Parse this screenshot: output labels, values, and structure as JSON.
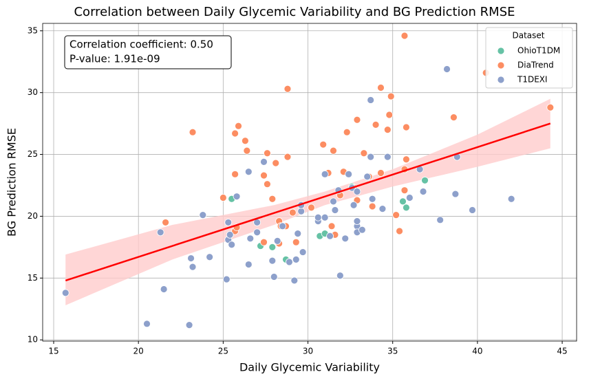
{
  "chart_data": {
    "type": "scatter",
    "title": "Correlation between Daily Glycemic Variability and BG Prediction RMSE",
    "x_label": "Daily Glycemic Variability",
    "y_label": "BG Prediction RMSE",
    "xlim": [
      14.35,
      45.85
    ],
    "ylim": [
      9.9,
      35.6
    ],
    "xticks": [
      15,
      20,
      25,
      30,
      35,
      40,
      45
    ],
    "yticks": [
      10,
      15,
      20,
      25,
      30,
      35
    ],
    "grid": true,
    "legend_title": "Dataset",
    "legend_position": "upper right",
    "annotation": [
      "Correlation coefficient: 0.50",
      "P-value: 1.91e-09"
    ],
    "series": [
      {
        "name": "OhioT1DM",
        "color": "#66c2a5",
        "x": [
          25.5,
          27.2,
          27.9,
          28.7,
          30.7,
          31.0,
          35.6,
          35.8,
          36.9,
          32.6
        ],
        "y": [
          21.4,
          17.6,
          17.5,
          16.5,
          18.4,
          18.6,
          21.2,
          20.7,
          22.9,
          22.4
        ]
      },
      {
        "name": "DiaTrend",
        "color": "#fc8d62",
        "x": [
          21.6,
          23.2,
          25.0,
          25.7,
          25.7,
          25.9,
          25.7,
          25.8,
          26.3,
          26.4,
          27.4,
          27.4,
          27.6,
          27.6,
          27.9,
          28.1,
          28.3,
          28.3,
          28.4,
          28.8,
          28.8,
          28.7,
          29.1,
          29.3,
          30.2,
          30.9,
          31.2,
          31.4,
          31.5,
          31.6,
          31.9,
          32.1,
          32.3,
          32.7,
          32.9,
          32.9,
          33.3,
          33.6,
          33.8,
          34.0,
          34.3,
          34.3,
          34.7,
          34.8,
          34.9,
          35.2,
          35.4,
          35.7,
          35.7,
          35.7,
          35.8,
          35.8,
          38.6,
          40.5,
          44.3
        ],
        "y": [
          19.5,
          26.8,
          21.5,
          23.4,
          26.7,
          27.3,
          18.8,
          19.1,
          26.1,
          25.3,
          17.9,
          23.3,
          25.1,
          22.6,
          21.4,
          24.3,
          19.6,
          17.8,
          19.2,
          24.8,
          30.3,
          19.2,
          20.3,
          17.9,
          20.7,
          25.8,
          23.5,
          19.2,
          25.3,
          18.5,
          21.7,
          23.6,
          26.8,
          22.3,
          21.3,
          27.8,
          25.1,
          23.2,
          20.8,
          27.4,
          23.5,
          30.4,
          27.0,
          28.2,
          29.7,
          20.1,
          18.8,
          23.8,
          22.1,
          34.6,
          24.6,
          27.2,
          28.0,
          31.6,
          28.8
        ]
      },
      {
        "name": "T1DEXI",
        "color": "#8da0cb",
        "x": [
          15.7,
          20.5,
          21.3,
          21.5,
          23.0,
          23.1,
          23.2,
          23.8,
          24.2,
          25.2,
          25.3,
          25.3,
          25.4,
          25.5,
          25.8,
          26.5,
          26.5,
          26.6,
          27.0,
          27.0,
          27.4,
          27.9,
          28.0,
          28.2,
          28.5,
          28.9,
          29.2,
          29.3,
          29.4,
          29.6,
          29.6,
          29.7,
          30.6,
          30.6,
          31.0,
          31.0,
          31.3,
          31.5,
          31.6,
          31.8,
          31.9,
          32.2,
          32.4,
          32.6,
          32.7,
          32.9,
          32.9,
          32.9,
          32.9,
          33.2,
          33.5,
          33.7,
          33.7,
          33.8,
          34.4,
          34.7,
          36.0,
          36.6,
          36.8,
          37.8,
          38.2,
          38.7,
          38.8,
          39.7,
          42.0
        ],
        "y": [
          13.8,
          11.3,
          18.7,
          14.1,
          11.2,
          16.6,
          15.9,
          20.1,
          16.7,
          14.9,
          18.1,
          19.5,
          18.5,
          17.7,
          21.6,
          16.1,
          23.6,
          18.2,
          19.5,
          18.7,
          24.4,
          16.4,
          15.1,
          18.0,
          19.2,
          16.3,
          14.8,
          16.5,
          18.6,
          20.4,
          20.9,
          17.1,
          19.6,
          19.9,
          23.4,
          19.9,
          18.4,
          21.2,
          20.5,
          22.1,
          15.2,
          18.2,
          23.4,
          22.3,
          20.9,
          22.0,
          19.2,
          19.6,
          18.7,
          18.9,
          23.2,
          24.8,
          29.4,
          21.4,
          20.6,
          24.8,
          21.5,
          23.8,
          22.0,
          19.7,
          31.9,
          21.8,
          24.8,
          20.5,
          21.4
        ]
      }
    ],
    "regression": {
      "color": "#ff0000",
      "x": [
        15.7,
        44.3
      ],
      "y": [
        14.8,
        27.5
      ]
    },
    "confidence_band": {
      "color": "#ffcccc",
      "x": [
        15.7,
        22,
        28,
        31,
        35,
        40,
        44.3
      ],
      "lower": [
        12.8,
        16.5,
        19.3,
        20.9,
        22.4,
        24.0,
        25.5
      ],
      "upper": [
        16.9,
        19.3,
        20.9,
        22.0,
        23.8,
        26.6,
        29.5
      ]
    }
  }
}
